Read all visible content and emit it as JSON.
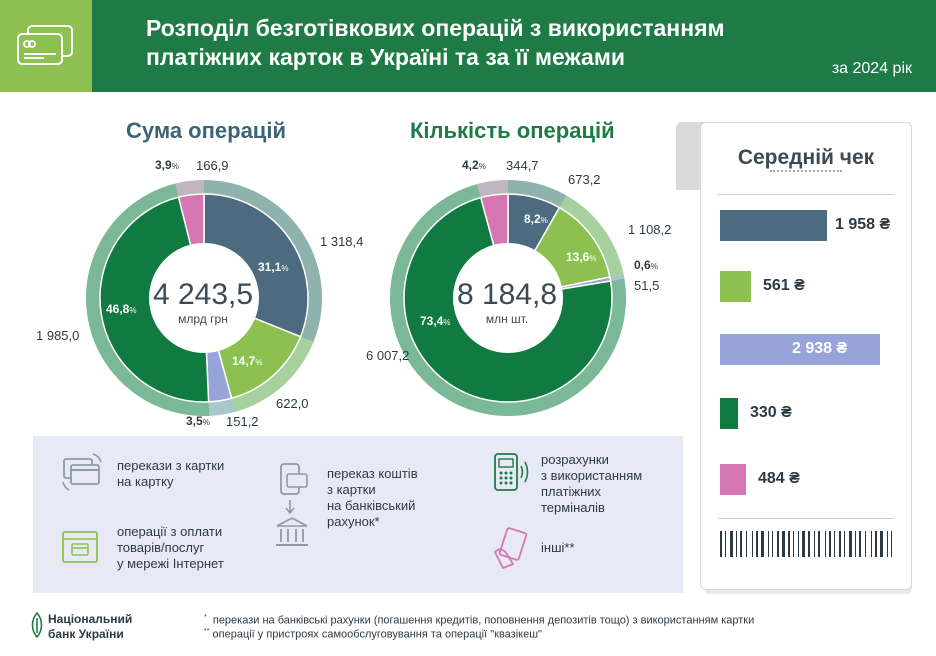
{
  "header": {
    "title_line1": "Розподіл безготівкових операцій з використанням",
    "title_line2": "платіжних карток в Україні та за її межами",
    "period": "за 2024 рік",
    "icon": "payment-cards-icon"
  },
  "colors": {
    "card_to_card": "#4d6b80",
    "internet": "#8cc152",
    "account_transfer": "#98a4d9",
    "terminals": "#117a40",
    "other": "#d676b2",
    "outer_ring": "#b4d9c6",
    "header_green": "#1e7b46",
    "header_light_green": "#8cc152"
  },
  "chart_data": [
    {
      "type": "pie",
      "title": "Сума операцій",
      "total": "4 243,5",
      "total_unit": "млрд грн",
      "categories": [
        "перекази з картки на картку",
        "операції з оплати товарів/послуг у мережі Інтернет",
        "переказ коштів з картки на банківський рахунок",
        "розрахунки з використанням платіжних терміналів",
        "інші"
      ],
      "values": [
        1318.4,
        622.0,
        151.2,
        1985.0,
        166.9
      ],
      "value_labels": [
        "1 318,4",
        "622,0",
        "151,2",
        "1 985,0",
        "166,9"
      ],
      "percents": [
        31.1,
        14.7,
        3.5,
        46.8,
        3.9
      ],
      "percent_labels": [
        "31,1",
        "14,7",
        "3,5",
        "46,8",
        "3,9"
      ]
    },
    {
      "type": "pie",
      "title": "Кількість операцій",
      "total": "8 184,8",
      "total_unit": "млн шт.",
      "categories": [
        "перекази з картки на картку",
        "операції з оплати товарів/послуг у мережі Інтернет",
        "переказ коштів з картки на банківський рахунок",
        "розрахунки з використанням платіжних терміналів",
        "інші"
      ],
      "values": [
        673.2,
        1108.2,
        51.5,
        6007.2,
        344.7
      ],
      "value_labels": [
        "673,2",
        "1 108,2",
        "51,5",
        "6 007,2",
        "344,7"
      ],
      "percents": [
        8.2,
        13.6,
        0.6,
        73.4,
        4.2
      ],
      "percent_labels": [
        "8,2",
        "13,6",
        "0,6",
        "73,4",
        "4,2"
      ]
    },
    {
      "type": "bar",
      "title": "Середній чек",
      "categories": [
        "перекази з картки на картку",
        "операції з оплати товарів/послуг у мережі Інтернет",
        "переказ коштів з картки на банківський рахунок",
        "розрахунки з використанням платіжних терміналів",
        "інші"
      ],
      "values": [
        1958,
        561,
        2938,
        330,
        484
      ],
      "value_labels": [
        "1 958 ₴",
        "561 ₴",
        "2 938 ₴",
        "330 ₴",
        "484 ₴"
      ]
    }
  ],
  "percent_unit": "%",
  "legend": {
    "card_to_card": "перекази з картки\nна картку",
    "internet": "операції з оплати\nтоварів/послуг\nу мережі Інтернет",
    "account_transfer": "переказ коштів\nз картки\nна банківський\nрахунок*",
    "terminals": "розрахунки\nз використанням\nплатіжних\nтерміналів",
    "other": "інші**",
    "icons": [
      "card-to-card-icon",
      "internet-payment-icon",
      "account-transfer-icon",
      "pos-terminal-icon",
      "other-operations-icon"
    ]
  },
  "footer": {
    "org_line1": "Національний",
    "org_line2": "банк України",
    "note1_mark": "*",
    "note1": "перекази на банківські рахунки (погашення кредитів, поповнення депозитів тощо) з використанням картки",
    "note2_mark": "**",
    "note2": "операції у пристроях самообслуговування та операції \"квазікеш\""
  }
}
